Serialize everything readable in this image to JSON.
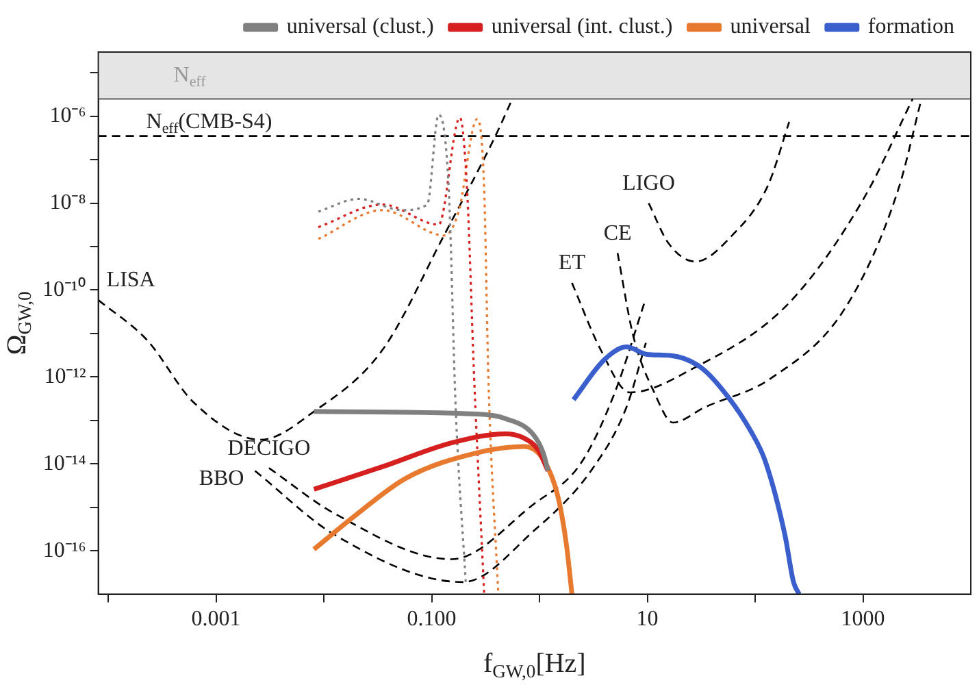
{
  "chart_data": {
    "type": "line",
    "xlabel": "f$_{GW,0}$[Hz]",
    "ylabel": "Ω$_{GW,0}$",
    "log": "xy",
    "grid": false,
    "legend": "top",
    "marker": "none",
    "xlim": [
      8.1e-05,
      10000
    ],
    "ylim": [
      1e-17,
      3e-05
    ],
    "xticks": [
      {
        "value": 0.0001,
        "label": null
      },
      {
        "value": 0.001,
        "label": "0.001"
      },
      {
        "value": 0.01,
        "label": null
      },
      {
        "value": 0.1,
        "label": "0.100"
      },
      {
        "value": 1,
        "label": null
      },
      {
        "value": 10,
        "label": "10"
      },
      {
        "value": 100,
        "label": null
      },
      {
        "value": 1000,
        "label": "1000"
      }
    ],
    "yticks": [
      {
        "value": 1e-16,
        "label": "10⁻¹⁶"
      },
      {
        "value": 1e-15,
        "label": null
      },
      {
        "value": 1e-14,
        "label": "10⁻¹⁴"
      },
      {
        "value": 1e-13,
        "label": null
      },
      {
        "value": 1e-12,
        "label": "10⁻¹²"
      },
      {
        "value": 1e-11,
        "label": null
      },
      {
        "value": 1e-10,
        "label": "10⁻¹⁰"
      },
      {
        "value": 1e-09,
        "label": null
      },
      {
        "value": 1e-08,
        "label": "10⁻⁸"
      },
      {
        "value": 1e-07,
        "label": null
      },
      {
        "value": 1e-06,
        "label": "10⁻⁶"
      },
      {
        "value": 1e-05,
        "label": null
      }
    ],
    "bands": [
      {
        "axis": "y",
        "from": 2.5e-06,
        "to": 3e-05,
        "label": "N$_{eff}$",
        "color": "#e5e5e5"
      }
    ],
    "ref_lines": [
      {
        "axis": "y",
        "value": 2.5e-06,
        "color": "#888888",
        "line_style": "solid"
      },
      {
        "axis": "y",
        "value": 3.5e-07,
        "label": "N$_{eff}$(CMB-S4)",
        "color": "#000000",
        "line_style": "dashed"
      }
    ],
    "series": [
      {
        "name": "universal (clust.)",
        "color": "#808080",
        "line_style": "solid",
        "x": [
          0.0081,
          0.264,
          0.483,
          0.89,
          1.09,
          1.2
        ],
        "values": [
          1.6e-13,
          1.4e-13,
          1.1e-13,
          4.5e-14,
          1.7e-14,
          6.9e-15
        ]
      },
      {
        "name": "universal (int. clust.)",
        "color": "#d62020",
        "line_style": "solid",
        "x": [
          0.0081,
          0.035,
          0.157,
          0.483,
          0.72,
          0.97,
          1.2
        ],
        "values": [
          2.6e-15,
          8.6e-15,
          3.1e-14,
          4.9e-14,
          3.9e-14,
          2.1e-14,
          6.9e-15
        ]
      },
      {
        "name": "universal",
        "color": "#e87a30",
        "line_style": "solid",
        "x": [
          0.0081,
          0.019,
          0.058,
          0.264,
          0.72,
          1.09,
          1.48,
          1.78,
          2.0
        ],
        "values": [
          1.08e-16,
          6.1e-16,
          4.7e-15,
          1.8e-14,
          2.5e-14,
          1.25e-14,
          1.8e-15,
          1.35e-16,
          1e-17
        ]
      },
      {
        "name": "formation",
        "color": "#3a5fcd",
        "line_style": "solid",
        "x": [
          2.07,
          4.0,
          6.4,
          10,
          16.7,
          32,
          56,
          91,
          124,
          189,
          227,
          256
        ],
        "values": [
          3e-13,
          2.5e-12,
          4.9e-12,
          3.3e-12,
          3.1e-12,
          1.6e-12,
          3.5e-13,
          5.7e-14,
          1.16e-14,
          2.3e-16,
          1.9e-17,
          1e-17
        ]
      },
      {
        "color": "#808080",
        "line_style": "dotted",
        "x": [
          0.0089,
          0.021,
          0.053,
          0.091,
          0.116,
          0.144,
          0.167,
          0.207
        ],
        "values": [
          6.4e-09,
          1.25e-08,
          6.9e-09,
          9.3e-09,
          1.08e-06,
          2.1e-08,
          2e-13,
          1.9e-17
        ]
      },
      {
        "color": "#d62020",
        "line_style": "dotted",
        "x": [
          0.0089,
          0.035,
          0.116,
          0.183,
          0.213,
          0.248,
          0.307
        ],
        "values": [
          2.8e-09,
          9.3e-09,
          3.2e-09,
          9.3e-07,
          2.1e-08,
          9.3e-13,
          1e-17
        ]
      },
      {
        "color": "#e87a30",
        "line_style": "dotted",
        "x": [
          0.0089,
          0.035,
          0.131,
          0.178,
          0.264,
          0.307,
          0.336,
          0.415
        ],
        "values": [
          1.5e-09,
          6.9e-09,
          1.8e-09,
          6.4e-09,
          8.6e-07,
          2.1e-08,
          9.3e-13,
          1e-17
        ]
      },
      {
        "name": "LISA",
        "color": "#000000",
        "line_style": "dashed",
        "x": [
          8.1e-05,
          0.00023,
          0.00062,
          0.0026,
          0.0081,
          0.035,
          0.13,
          0.39,
          0.56
        ],
        "values": [
          5.9e-11,
          7e-12,
          2.6e-13,
          3.6e-14,
          1.6e-13,
          4.2e-12,
          1.8e-09,
          3.5e-07,
          2.5e-06
        ]
      },
      {
        "name": "DECIGO",
        "color": "#000000",
        "line_style": "dashed",
        "x": [
          0.0031,
          0.0127,
          0.153,
          0.89,
          2.4,
          5.0,
          9.4
        ],
        "values": [
          8e-15,
          7.1e-16,
          6.4e-17,
          1.2e-15,
          1e-14,
          4.4e-13,
          5.1e-11
        ]
      },
      {
        "name": "BBO",
        "color": "#000000",
        "line_style": "dashed",
        "x": [
          0.0023,
          0.0127,
          0.195,
          0.89,
          3.0,
          6.4,
          9.7
        ],
        "values": [
          6.9e-15,
          2.3e-16,
          1.9e-17,
          2.9e-16,
          6.9e-15,
          2e-13,
          6.1e-12
        ]
      },
      {
        "name": "ET",
        "color": "#000000",
        "line_style": "dashed",
        "x": [
          2.0,
          3.7,
          6.9,
          27,
          207,
          1030,
          2890
        ],
        "values": [
          1.46e-10,
          4.2e-12,
          4.4e-13,
          1.6e-12,
          5.1e-11,
          1.35e-08,
          2.5e-06
        ]
      },
      {
        "name": "CE",
        "color": "#000000",
        "line_style": "dashed",
        "x": [
          5.3,
          7.4,
          11.6,
          17.3,
          34,
          140,
          695,
          2130,
          3460
        ],
        "values": [
          7.1e-10,
          8.9e-12,
          4.4e-13,
          8.9e-14,
          2e-13,
          9.3e-13,
          4.1e-11,
          2.1e-08,
          2.3e-06
        ]
      },
      {
        "name": "LIGO",
        "color": "#000000",
        "line_style": "dashed",
        "x": [
          10.3,
          15.7,
          28,
          61,
          131,
          207
        ],
        "values": [
          1e-08,
          1.2e-09,
          4.5e-10,
          1.8e-09,
          2.5e-08,
          7.4e-07
        ]
      }
    ]
  }
}
